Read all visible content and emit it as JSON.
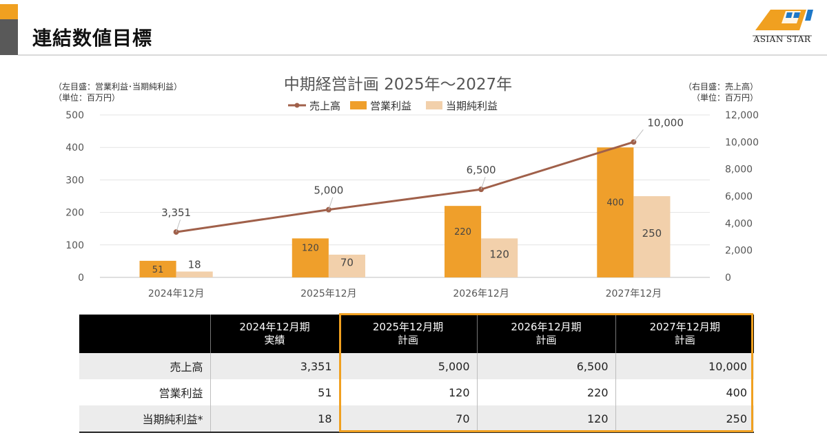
{
  "page": {
    "title": "連結数値目標"
  },
  "logo": {
    "text": "ASIAN STAR"
  },
  "colors": {
    "sales_line": "#a0604a",
    "operating_profit": "#ef9f2b",
    "net_profit": "#f2d0ab",
    "accent": "#f0a020",
    "header_bg": "#000000"
  },
  "axis_notes": {
    "left_line1": "（左目盛：営業利益･当期純利益）",
    "left_line2": "（単位：百万円）",
    "right_line1": "（右目盛：売上高）",
    "right_line2": "（単位：百万円）"
  },
  "chart_data": {
    "type": "bar",
    "title": "中期経営計画 2025年～2027年",
    "categories": [
      "2024年12月",
      "2025年12月",
      "2026年12月",
      "2027年12月"
    ],
    "series": [
      {
        "name": "売上高",
        "type": "line",
        "axis": "right",
        "values": [
          3351,
          5000,
          6500,
          10000
        ],
        "labels": [
          "3,351",
          "5,000",
          "6,500",
          "10,000"
        ]
      },
      {
        "name": "営業利益",
        "type": "bar",
        "axis": "left",
        "values": [
          51,
          120,
          220,
          400
        ],
        "labels": [
          "51",
          "120",
          "220",
          "400"
        ]
      },
      {
        "name": "当期純利益",
        "type": "bar",
        "axis": "left",
        "values": [
          18,
          70,
          120,
          250
        ],
        "labels": [
          "18",
          "70",
          "120",
          "250"
        ]
      }
    ],
    "ylim_left": [
      0,
      500
    ],
    "yticks_left": [
      "0",
      "100",
      "200",
      "300",
      "400",
      "500"
    ],
    "ylim_right": [
      0,
      12000
    ],
    "yticks_right": [
      "0",
      "2,000",
      "4,000",
      "6,000",
      "8,000",
      "10,000",
      "12,000"
    ],
    "legend": "top",
    "grid": true
  },
  "table": {
    "headers": [
      {
        "line1": "",
        "line2": ""
      },
      {
        "line1": "2024年12月期",
        "line2": "実績"
      },
      {
        "line1": "2025年12月期",
        "line2": "計画"
      },
      {
        "line1": "2026年12月期",
        "line2": "計画"
      },
      {
        "line1": "2027年12月期",
        "line2": "計画"
      }
    ],
    "rows": [
      {
        "label": "売上高",
        "values": [
          "3,351",
          "5,000",
          "6,500",
          "10,000"
        ]
      },
      {
        "label": "営業利益",
        "values": [
          "51",
          "120",
          "220",
          "400"
        ]
      },
      {
        "label": "当期純利益*",
        "values": [
          "18",
          "70",
          "120",
          "250"
        ]
      }
    ]
  }
}
